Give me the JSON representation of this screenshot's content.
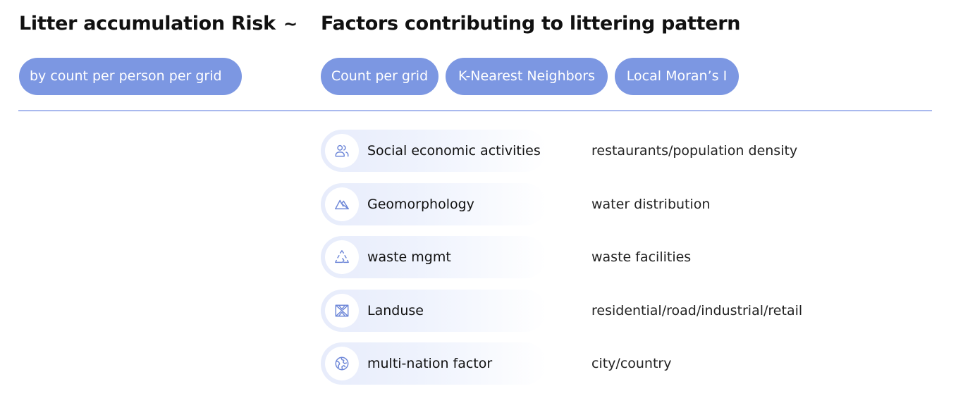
{
  "header": {
    "left_title": "Litter accumulation Risk",
    "separator": "~",
    "right_title": "Factors contributing to littering pattern"
  },
  "left_pill": "by count per person per grid",
  "method_pills": [
    "Count per grid",
    "K-Nearest Neighbors",
    "Local Moran’s I"
  ],
  "factors": [
    {
      "icon": "people-icon",
      "name": "Social economic activities",
      "description": "restaurants/population density"
    },
    {
      "icon": "mountain-icon",
      "name": "Geomorphology",
      "description": "water distribution"
    },
    {
      "icon": "recycle-icon",
      "name": "waste mgmt",
      "description": "waste facilities"
    },
    {
      "icon": "map-icon",
      "name": "Landuse",
      "description": "residential/road/industrial/retail"
    },
    {
      "icon": "globe-icon",
      "name": "multi-nation factor",
      "description": "city/country"
    }
  ],
  "colors": {
    "pill": "#7c97e2",
    "divider": "#a9b9ee",
    "icon": "#6f88d8",
    "chip": "#e7ecfb"
  }
}
